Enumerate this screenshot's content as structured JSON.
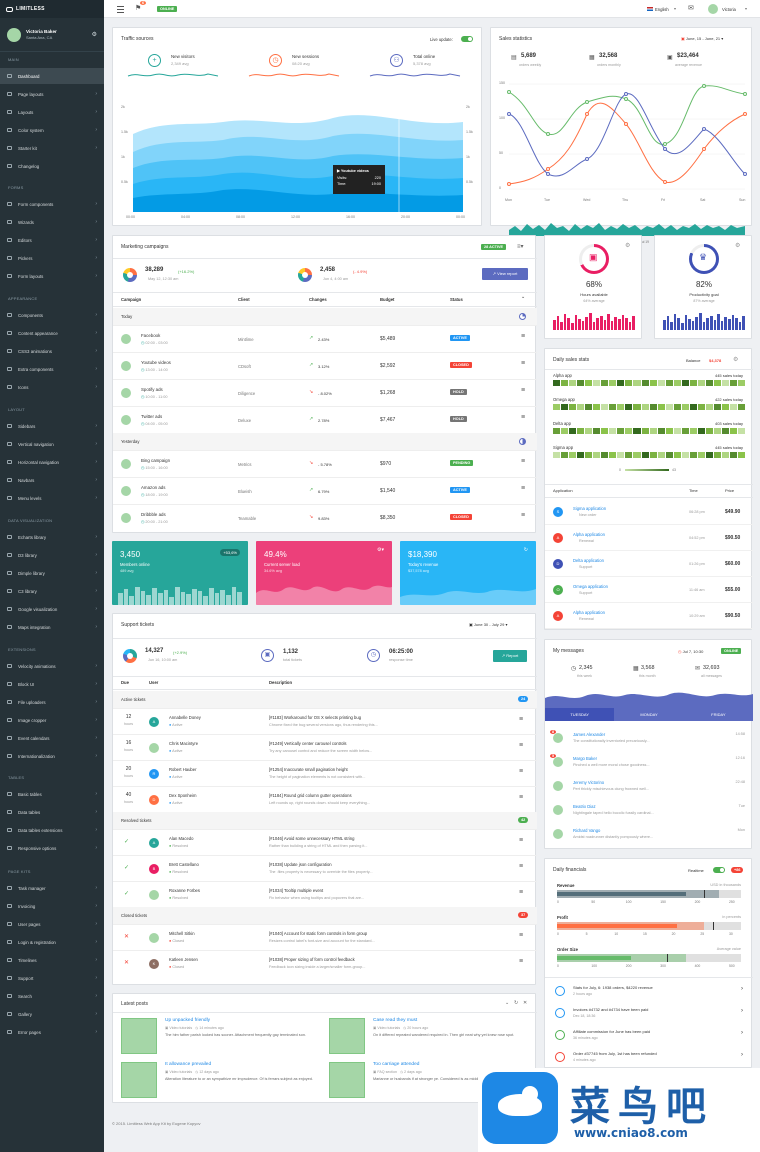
{
  "app": {
    "logo": "LIMITLESS"
  },
  "sidebar": {
    "user": {
      "name": "Victoria Baker",
      "location": "Santa Ana, CA"
    },
    "sections": [
      {
        "label": "Main",
        "items": [
          "Dashboard",
          "Page layouts",
          "Layouts",
          "Color system",
          "Starter kit",
          "Changelog"
        ]
      },
      {
        "label": "Forms",
        "items": [
          "Form components",
          "Wizards",
          "Editors",
          "Pickers",
          "Form layouts"
        ]
      },
      {
        "label": "Appearance",
        "items": [
          "Components",
          "Content appearance",
          "CSS3 animations",
          "Extra components",
          "Icons"
        ]
      },
      {
        "label": "Layout",
        "items": [
          "Sidebars",
          "Vertical navigation",
          "Horizontal navigation",
          "Navbars",
          "Menu levels"
        ]
      },
      {
        "label": "Data visualization",
        "items": [
          "Echarts library",
          "D3 library",
          "Dimple library",
          "C3 library",
          "Google visualization",
          "Maps integration"
        ]
      },
      {
        "label": "Extensions",
        "items": [
          "Velocity animations",
          "Block UI",
          "File uploaders",
          "Image cropper",
          "Event calendars",
          "Internationalization"
        ]
      },
      {
        "label": "Tables",
        "items": [
          "Basic tables",
          "Data tables",
          "Data tables extensions",
          "Responsive options"
        ]
      },
      {
        "label": "Page kits",
        "items": [
          "Task manager",
          "Invoicing",
          "User pages",
          "Login & registration",
          "Timelines",
          "Support",
          "Search",
          "Gallery",
          "Error pages"
        ]
      }
    ]
  },
  "topbar": {
    "notif_count": "6",
    "status": "ONLINE",
    "language": "English",
    "user": "Victoria"
  },
  "traffic": {
    "title": "Traffic sources",
    "live_label": "Live update:",
    "stats": [
      {
        "label": "New visitors",
        "value": "2,349 avg"
      },
      {
        "label": "New sessions",
        "value": "08:20 avg"
      },
      {
        "label": "Total online",
        "value": "5,378 avg"
      }
    ],
    "yticks": [
      "2k",
      "1.5k",
      "1k",
      "0.5k"
    ],
    "yticks_r": [
      "2k",
      "1.5k",
      "1k",
      "0.5k"
    ],
    "xticks": [
      "00:00",
      "04:00",
      "08:00",
      "12:00",
      "16:00",
      "20:00",
      "00:00"
    ],
    "tooltip": {
      "title": "Youtube videos",
      "visits_label": "Visits:",
      "visits": "220",
      "time_label": "Time:",
      "time": "19:00"
    }
  },
  "sales": {
    "title": "Sales statistics",
    "range": "June, 15 - June, 21",
    "stats": [
      {
        "value": "5,689",
        "label": "orders weekly"
      },
      {
        "value": "32,568",
        "label": "orders monthly"
      },
      {
        "value": "$23,464",
        "label": "average revenue"
      }
    ],
    "yticks": [
      "150",
      "100",
      "50",
      "0"
    ],
    "days": [
      "Mon",
      "Tue",
      "Wed",
      "Thu",
      "Fri",
      "Sat",
      "Sun"
    ],
    "dates": [
      "Jul 01",
      "Jul 07",
      "Jul 13",
      "Jul 19",
      "Jul 25",
      "Jul 31"
    ]
  },
  "campaigns": {
    "title": "Marketing campaigns",
    "badge": "28 ACTIVE",
    "summary": [
      {
        "value": "38,289",
        "change": "(+16.2%)",
        "date": "May 12, 12:30 am"
      },
      {
        "value": "2,458",
        "change": "(- 4.9%)",
        "date": "Jun 4, 4:00 am"
      }
    ],
    "report_button": "View report",
    "columns": [
      "Campaign",
      "Client",
      "Changes",
      "Budget",
      "Status"
    ],
    "groups": [
      {
        "label": "Today",
        "rows": [
          {
            "name": "Facebook",
            "time": "02:00 - 03:00",
            "client": "Mintlime",
            "change": "2.43%",
            "up": true,
            "budget": "$5,489",
            "status": "ACTIVE",
            "scolor": "#2196f3"
          },
          {
            "name": "Youtube videos",
            "time": "13:00 - 14:00",
            "client": "CDsoft",
            "change": "3.12%",
            "up": true,
            "budget": "$2,592",
            "status": "CLOSED",
            "scolor": "#f44336"
          },
          {
            "name": "Spotify ads",
            "time": "10:00 - 11:00",
            "client": "Diligence",
            "change": "- 8.02%",
            "up": false,
            "budget": "$1,268",
            "status": "HOLD",
            "scolor": "#757575"
          },
          {
            "name": "Twitter ads",
            "time": "04:00 - 05:00",
            "client": "Deluxe",
            "change": "2.78%",
            "up": true,
            "budget": "$7,467",
            "status": "HOLD",
            "scolor": "#757575"
          }
        ]
      },
      {
        "label": "Yesterday",
        "rows": [
          {
            "name": "Bing campaign",
            "time": "15:00 - 16:00",
            "client": "Metrics",
            "change": "- 5.78%",
            "up": false,
            "budget": "$970",
            "status": "PENDING",
            "scolor": "#4caf50"
          },
          {
            "name": "Amazon ads",
            "time": "18:00 - 19:00",
            "client": "Blueish",
            "change": "6.79%",
            "up": true,
            "budget": "$1,540",
            "status": "ACTIVE",
            "scolor": "#2196f3"
          },
          {
            "name": "Dribbble ads",
            "time": "20:00 - 21:00",
            "client": "Teamable",
            "change": "9.83%",
            "up": false,
            "budget": "$8,350",
            "status": "CLOSED",
            "scolor": "#f44336"
          }
        ]
      }
    ]
  },
  "tiles": [
    {
      "value": "3,450",
      "label": "Members online",
      "sub": "489 avg",
      "badge": "+53,6%",
      "color": "#26a69a"
    },
    {
      "value": "49.4%",
      "label": "Current server load",
      "sub": "34.6% avg",
      "color": "#ec407a"
    },
    {
      "value": "$18,390",
      "label": "Today's revenue",
      "sub": "$37,578 avg",
      "color": "#29b6f6"
    }
  ],
  "gauges": [
    {
      "value": "68%",
      "label": "Hours available",
      "sub": "64% average",
      "color": "#e91e63"
    },
    {
      "value": "82%",
      "label": "Productivity goal",
      "sub": "87% average",
      "color": "#3f51b5"
    }
  ],
  "daily": {
    "title": "Daily sales stats",
    "balance_label": "Balance",
    "balance": "$4,378",
    "apps": [
      {
        "name": "Alpha app",
        "sales": "445 sales today"
      },
      {
        "name": "Omega app",
        "sales": "422 sales today"
      },
      {
        "name": "Delta app",
        "sales": "403 sales today"
      },
      {
        "name": "Sigma app",
        "sales": "445 sales today"
      }
    ],
    "legend_min": "0",
    "legend_max": "43",
    "columns": [
      "Application",
      "Time",
      "Price"
    ],
    "rows": [
      {
        "app": "Sigma application",
        "status": "New order",
        "time": "06:28 pm",
        "price": "$49.90",
        "letter": "S",
        "color": "#2196f3"
      },
      {
        "app": "Alpha application",
        "status": "Renewal",
        "time": "04:52 pm",
        "price": "$90.50",
        "letter": "A",
        "color": "#f44336"
      },
      {
        "app": "Delta application",
        "status": "Support",
        "time": "01:26 pm",
        "price": "$60.00",
        "letter": "D",
        "color": "#3f51b5"
      },
      {
        "app": "Omega application",
        "status": "Support",
        "time": "11:46 am",
        "price": "$55.00",
        "letter": "O",
        "color": "#4caf50"
      },
      {
        "app": "Alpha application",
        "status": "Renewal",
        "time": "10:29 am",
        "price": "$90.50",
        "letter": "A",
        "color": "#f44336"
      }
    ]
  },
  "tickets": {
    "title": "Support tickets",
    "range": "June 30 - July 29",
    "summary": [
      {
        "value": "14,327",
        "change": "(+2.9%)",
        "date": "Jun 16, 10:00 am"
      },
      {
        "value": "1,132",
        "label": "total tickets"
      },
      {
        "value": "06:25:00",
        "label": "response time"
      }
    ],
    "report_button": "Report",
    "columns": [
      "Due",
      "User",
      "Description"
    ],
    "groups": [
      {
        "label": "Active tickets",
        "count": "24",
        "ccolor": "#2196f3",
        "rows": [
          {
            "due": "12",
            "unit": "hours",
            "user": "Annabelle Doney",
            "state": "Active",
            "letter": "A",
            "color": "#26a69a",
            "title": "[#1183] Workaround for OS X selects printing bug",
            "desc": "Chrome fixed the bug several versions ago, thus rendering this..."
          },
          {
            "due": "16",
            "unit": "hours",
            "user": "Chris Macintyre",
            "state": "Active",
            "letter": "",
            "color": "#a5d6a7",
            "title": "[#1249] Vertically center carousel controls",
            "desc": "Try any carousel control and reduce the screen width below..."
          },
          {
            "due": "20",
            "unit": "hours",
            "user": "Robert Hauber",
            "state": "Active",
            "letter": "R",
            "color": "#2196f3",
            "title": "[#1254] Inaccurate small pagination height",
            "desc": "The height of pagination elements is not consistent with..."
          },
          {
            "due": "40",
            "unit": "hours",
            "user": "Dex Sponheim",
            "state": "Active",
            "letter": "D",
            "color": "#ff7043",
            "title": "[#1184] Round grid column gutter operations",
            "desc": "Left rounds up, right rounds down. should keep everything..."
          }
        ]
      },
      {
        "label": "Resolved tickets",
        "count": "42",
        "ccolor": "#4caf50",
        "rows": [
          {
            "user": "Alan Macedo",
            "state": "Resolved",
            "letter": "A",
            "color": "#26a69a",
            "title": "[#1046] Avoid some unnecessary HTML string",
            "desc": "Rather than building a string of HTML and then parsing it..."
          },
          {
            "user": "Brett Castellano",
            "state": "Resolved",
            "letter": "B",
            "color": "#e91e63",
            "title": "[#1038] Update json configuration",
            "desc": "The .files property is necessary to override the files property..."
          },
          {
            "user": "Roxanne Forbes",
            "state": "Resolved",
            "letter": "",
            "color": "#a5d6a7",
            "title": "[#1034] Tooltip multiple event",
            "desc": "Fix behavior when using tooltips and popovers that are..."
          }
        ]
      },
      {
        "label": "Closed tickets",
        "count": "37",
        "ccolor": "#f44336",
        "rows": [
          {
            "user": "Mitchell Sitkin",
            "state": "Closed",
            "letter": "",
            "color": "#a5d6a7",
            "title": "[#1040] Account for static form controls in form group",
            "desc": "Resizes control label's font-size and account for the standard..."
          },
          {
            "user": "Katleen Jensen",
            "state": "Closed",
            "letter": "K",
            "color": "#8d6e63",
            "title": "[#1038] Proper sizing of form control feedback",
            "desc": "Feedback icon sizing inside a larger/smaller form-group..."
          }
        ]
      }
    ]
  },
  "messages": {
    "title": "My messages",
    "date": "Jul 7, 10:30",
    "status": "ONLINE",
    "stats": [
      {
        "value": "2,345",
        "label": "this week"
      },
      {
        "value": "3,568",
        "label": "this month"
      },
      {
        "value": "32,693",
        "label": "all messages"
      }
    ],
    "tabs": [
      "TUESDAY",
      "MONDAY",
      "FRIDAY"
    ],
    "items": [
      {
        "name": "James Alexander",
        "text": "The constitutionally inventoried precariously...",
        "time": "14:58",
        "badge": "8"
      },
      {
        "name": "Margo Baker",
        "text": "Pinched a well more moral chose goodness...",
        "time": "12:16",
        "badge": "5"
      },
      {
        "name": "Jeremy Victorino",
        "text": "Pert thickly mischievous clung frowned well...",
        "time": "22:48",
        "badge": ""
      },
      {
        "name": "Beatrix Diaz",
        "text": "Nightingale taped hello bucolic fussily cardinal...",
        "time": "Tue",
        "badge": ""
      },
      {
        "name": "Richard Vango",
        "text": "Amidst roadrunner distantly pompously where...",
        "time": "Mon",
        "badge": ""
      }
    ]
  },
  "financials": {
    "title": "Daily financials",
    "realtime": "Realtime",
    "count": "+86",
    "bars": [
      {
        "label": "Revenue",
        "note": "USD in thousands",
        "ticks": [
          "0",
          "50",
          "100",
          "150",
          "200",
          "250"
        ],
        "color": "#546e7a"
      },
      {
        "label": "Profit",
        "note": "in percents",
        "ticks": [
          "0",
          "5",
          "10",
          "15",
          "20",
          "25",
          "30"
        ],
        "color": "#ff7043"
      },
      {
        "label": "Order Size",
        "note": "Average value",
        "ticks": [
          "0",
          "100",
          "200",
          "300",
          "400",
          "500"
        ],
        "color": "#66bb6a"
      }
    ],
    "feed": [
      {
        "text": "Stats for July, 6: 1938 orders, $4220 revenue",
        "time": "2 hours ago",
        "color": "#2196f3"
      },
      {
        "text": "Invoices #4732 and #4734 have been paid",
        "time": "Dec 18, 18:36",
        "color": "#2196f3"
      },
      {
        "text": "Affiliate commission for June has been paid",
        "time": "36 minutes ago",
        "color": "#4caf50"
      },
      {
        "text": "Order #37745 from July, 1st has been refunded",
        "time": "4 minutes ago",
        "color": "#f44336"
      }
    ]
  },
  "posts": {
    "title": "Latest posts",
    "items": [
      {
        "title": "Up unpacked friendly",
        "cat": "Video tutorials",
        "time": "14 minutes ago",
        "text": "The him father parish looked has sooner. Attachment frequently gay terminated son."
      },
      {
        "title": "Case read they must",
        "cat": "Video tutorials",
        "time": "20 hours ago",
        "text": "On it differed repeated wandered required in. Then girl neat why yet knew rose spot."
      },
      {
        "title": "It allowance prevailed",
        "cat": "Video tutorials",
        "time": "12 days ago",
        "text": "Alteration literature to or an sympathize mr imprudence. Of is ferrars subject as enjoyed."
      },
      {
        "title": "Too carriage attended",
        "cat": "FAQ section",
        "time": "2 days ago",
        "text": "Marianne or husbands if at stronger ye. Considered is as middletons uncommonly."
      }
    ]
  },
  "footer": {
    "text": "© 2015. Limitless Web App Kit by Eugene Kopyov"
  },
  "watermark": {
    "brand": "菜鸟吧",
    "url": "www.cniao8.com"
  }
}
